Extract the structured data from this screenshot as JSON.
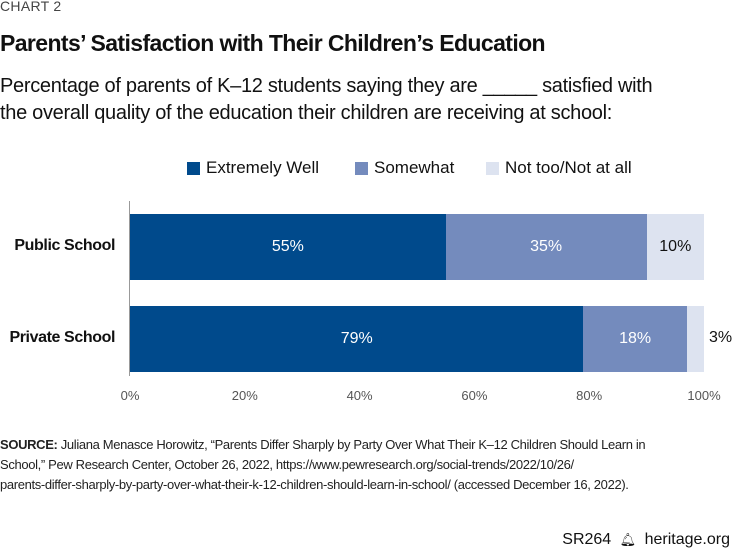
{
  "kicker": "CHART 2",
  "chart_data": {
    "type": "bar",
    "orientation": "horizontal",
    "stacked": true,
    "title": "Parents’ Satisfaction with Their Children’s Education",
    "subtitle_lines": [
      "Percentage of parents of K–12 students saying they are _____ satisfied with",
      "the overall quality of the education their children are receiving at school:"
    ],
    "categories": [
      "Public School",
      "Private School"
    ],
    "series": [
      {
        "name": "Extremely Well",
        "color": "#004a8c",
        "values": [
          55,
          79
        ],
        "labels": [
          "55%",
          "79%"
        ]
      },
      {
        "name": "Somewhat",
        "color": "#748bbd",
        "values": [
          35,
          18
        ],
        "labels": [
          "35%",
          "18%"
        ]
      },
      {
        "name": "Not too/Not at all",
        "color": "#dde3f0",
        "values": [
          10,
          3
        ],
        "labels": [
          "10%",
          "3%"
        ]
      }
    ],
    "xlim": [
      0,
      100
    ],
    "xticks": [
      0,
      20,
      40,
      60,
      80,
      100
    ],
    "xtick_labels": [
      "0%",
      "20%",
      "40%",
      "60%",
      "80%",
      "100%"
    ],
    "legend_position": "top",
    "grid": false
  },
  "source": {
    "label": "SOURCE:",
    "lines": [
      " Juliana Menasce Horowitz, “Parents Differ Sharply by Party Over What Their K–12 Children Should Learn in",
      "School,” Pew Research Center, October 26, 2022, https://www.pewresearch.org/social-trends/2022/10/26/",
      "parents-differ-sharply-by-party-over-what-their-k-12-children-should-learn-in-school/ (accessed December 16, 2022)."
    ]
  },
  "footer": {
    "report": "SR264",
    "site": "heritage.org",
    "icon": "liberty-bell-icon"
  }
}
